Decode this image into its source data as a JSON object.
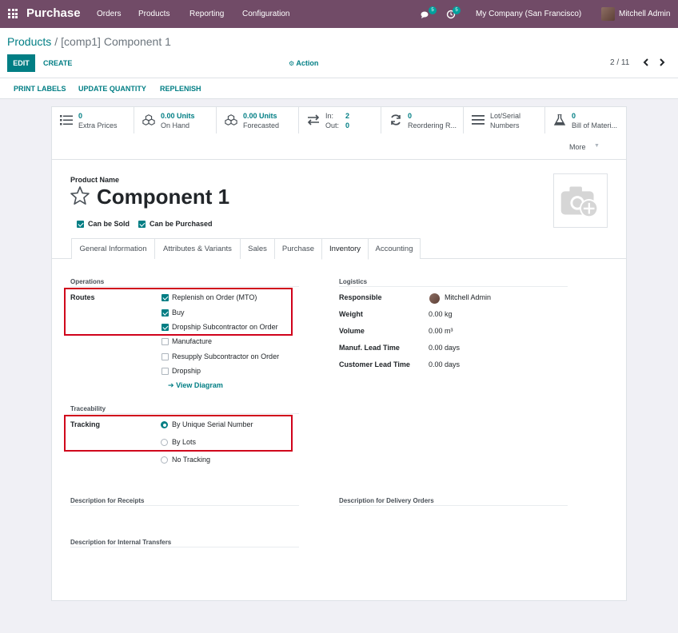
{
  "navbar": {
    "app_name": "Purchase",
    "menu": [
      "Orders",
      "Products",
      "Reporting",
      "Configuration"
    ],
    "messages_badge": "5",
    "activities_badge": "5",
    "company": "My Company (San Francisco)",
    "user": "Mitchell Admin",
    "bg_color": "#714b67"
  },
  "control": {
    "breadcrumb_parent": "Products",
    "breadcrumb_separator": "/",
    "breadcrumb_current": "[comp1] Component 1",
    "edit_label": "EDIT",
    "create_label": "CREATE",
    "action_label": "Action",
    "pager": "2 / 11",
    "accent_color": "#017e84"
  },
  "actionbar": {
    "buttons": [
      "PRINT LABELS",
      "UPDATE QUANTITY",
      "REPLENISH"
    ]
  },
  "smart_buttons": [
    {
      "value": "0",
      "label": "Extra Prices",
      "icon": "list-icon"
    },
    {
      "value": "0.00 Units",
      "label": "On Hand",
      "icon": "cubes-icon"
    },
    {
      "value": "0.00 Units",
      "label": "Forecasted",
      "icon": "cubes-icon"
    },
    {
      "in_label": "In:",
      "in_value": "2",
      "out_label": "Out:",
      "out_value": "0",
      "icon": "exchange-icon"
    },
    {
      "value": "0",
      "label": "Reordering R...",
      "icon": "refresh-icon"
    },
    {
      "value": "Lot/Serial",
      "label": "Numbers",
      "icon": "bars-icon"
    },
    {
      "value": "0",
      "label": "Bill of Materi...",
      "icon": "flask-icon"
    }
  ],
  "more_label": "More",
  "product": {
    "name_label": "Product Name",
    "name": "Component 1",
    "can_be_sold_label": "Can be Sold",
    "can_be_sold": true,
    "can_be_purchased_label": "Can be Purchased",
    "can_be_purchased": true
  },
  "tabs": [
    "General Information",
    "Attributes & Variants",
    "Sales",
    "Purchase",
    "Inventory",
    "Accounting"
  ],
  "active_tab": "Inventory",
  "operations": {
    "heading": "Operations",
    "routes_label": "Routes",
    "routes": [
      {
        "label": "Replenish on Order (MTO)",
        "checked": true
      },
      {
        "label": "Buy",
        "checked": true
      },
      {
        "label": "Dropship Subcontractor on Order",
        "checked": true
      },
      {
        "label": "Manufacture",
        "checked": false
      },
      {
        "label": "Resupply Subcontractor on Order",
        "checked": false
      },
      {
        "label": "Dropship",
        "checked": false
      }
    ],
    "view_diagram": "View Diagram"
  },
  "traceability": {
    "heading": "Traceability",
    "tracking_label": "Tracking",
    "options": [
      {
        "label": "By Unique Serial Number",
        "selected": true
      },
      {
        "label": "By Lots",
        "selected": false
      },
      {
        "label": "No Tracking",
        "selected": false
      }
    ]
  },
  "logistics": {
    "heading": "Logistics",
    "fields": [
      {
        "label": "Responsible",
        "value": "Mitchell Admin"
      },
      {
        "label": "Weight",
        "value": "0.00 kg"
      },
      {
        "label": "Volume",
        "value": "0.00 m³"
      },
      {
        "label": "Manuf. Lead Time",
        "value": "0.00 days"
      },
      {
        "label": "Customer Lead Time",
        "value": "0.00 days"
      }
    ]
  },
  "descriptions": {
    "receipts": "Description for Receipts",
    "delivery": "Description for Delivery Orders",
    "internal": "Description for Internal Transfers"
  },
  "highlight_color": "#d0021b"
}
